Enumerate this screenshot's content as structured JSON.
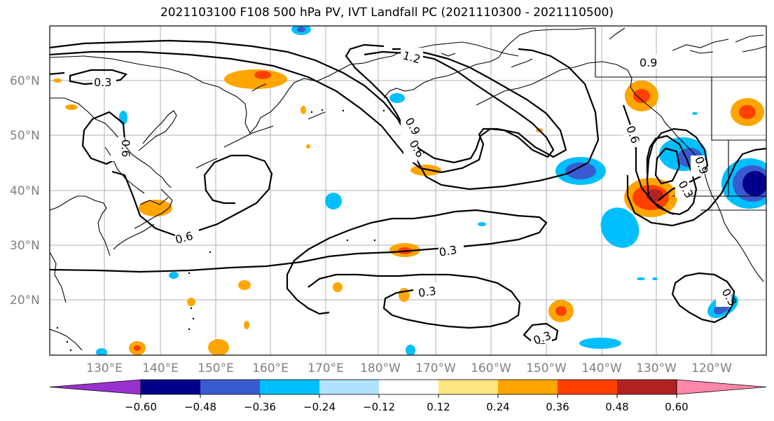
{
  "title": "2021103100 F108 500 hPa PV, IVT Landfall PC (2021110300 - 2021110500)",
  "lat_labels": [
    "60°N",
    "50°N",
    "40°N",
    "30°N",
    "20°N"
  ],
  "lon_labels": [
    "130°E",
    "140°E",
    "150°E",
    "160°E",
    "170°E",
    "180°W",
    "170°W",
    "160°W",
    "150°W",
    "140°W",
    "130°W",
    "120°W"
  ],
  "contour_labels": [
    "0.3",
    "0.6",
    "0.6",
    "1.2",
    "0.9",
    "0.6",
    "0.9",
    "0.6",
    "0.9",
    "0.3",
    "0.3",
    "0.3",
    "0.3",
    "0.3"
  ],
  "colorbar": {
    "colors": [
      "#9932cc",
      "#00008b",
      "#3a5bd0",
      "#00bfff",
      "#b0e2ff",
      "#ffffff",
      "#ffe680",
      "#ffa500",
      "#ff4000",
      "#b22222",
      "#ff88aa"
    ],
    "tick_labels": [
      "−0.60",
      "−0.48",
      "−0.36",
      "−0.24",
      "−0.12",
      "0.12",
      "0.24",
      "0.36",
      "0.48",
      "0.60"
    ]
  },
  "colors": {
    "grid": "#b0b0b0",
    "coast": "#000000",
    "contour": "#000000"
  }
}
